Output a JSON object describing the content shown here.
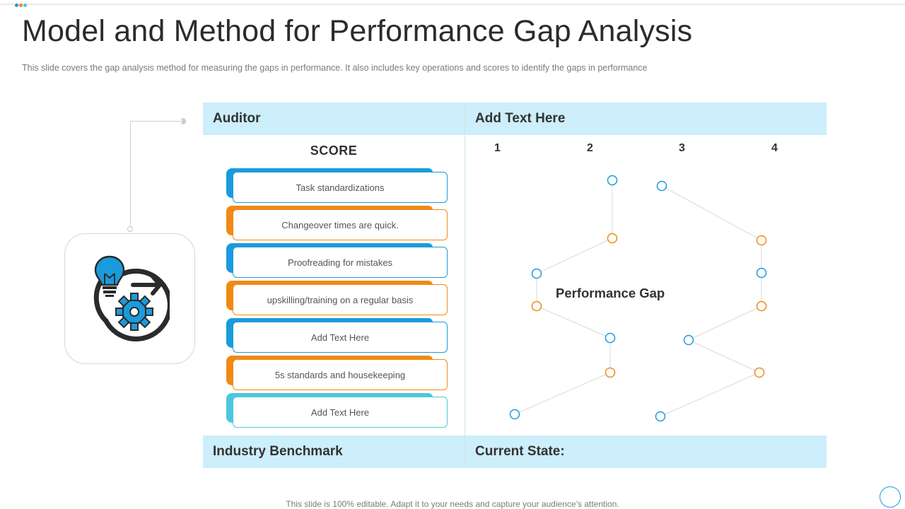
{
  "slide": {
    "title": "Model and Method for Performance Gap Analysis",
    "subtitle": "This slide covers the gap analysis method for measuring the gaps in performance.  It also includes key operations and scores to identify the gaps in performance",
    "footer": "This slide is 100% editable. Adapt it to your needs and capture your audience’s attention."
  },
  "table": {
    "header_left": "Auditor",
    "header_right": "Add Text Here",
    "score_label": "SCORE",
    "column_numbers": [
      "1",
      "2",
      "3",
      "4"
    ],
    "footer_left": "Industry Benchmark",
    "footer_right": "Current State:",
    "center_label": "Performance Gap"
  },
  "items": [
    {
      "label": "Task standardizations",
      "color": "#1a9bdc"
    },
    {
      "label": "Changeover  times are quick.",
      "color": "#f08a14"
    },
    {
      "label": "Proofreading  for  mistakes",
      "color": "#1a9bdc"
    },
    {
      "label": "upskilling/training  on  a  regular  basis",
      "color": "#f08a14"
    },
    {
      "label": "Add Text Here",
      "color": "#1a9bdc"
    },
    {
      "label": "5s standards and housekeeping",
      "color": "#f08a14"
    },
    {
      "label": "Add Text Here",
      "color": "#4cc8de"
    }
  ],
  "colors": {
    "blue": "#1a9bdc",
    "orange": "#f08a14",
    "header_band": "#cdeefb"
  },
  "icons": [
    "lightbulb-icon",
    "gear-icon",
    "refresh-arrow-icon",
    "chevron-right-icon"
  ]
}
